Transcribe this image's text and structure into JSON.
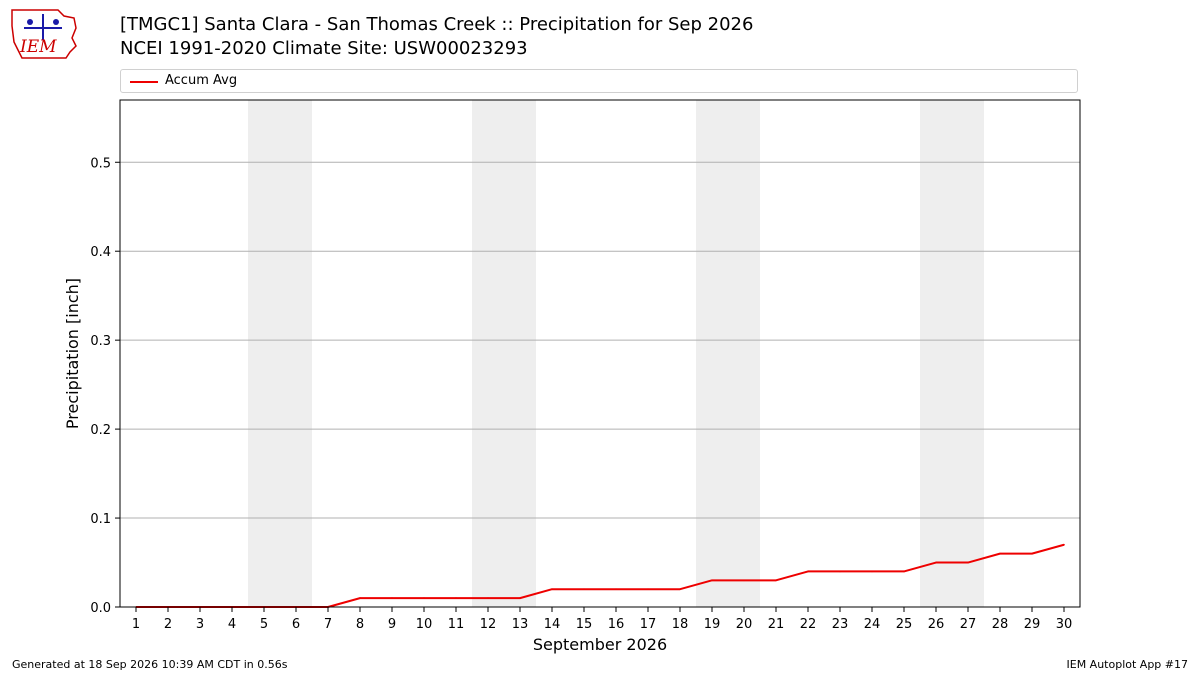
{
  "logo": {
    "text": "IEM",
    "color": "#cc0000",
    "accent": "#1a1aa8"
  },
  "header": {
    "title_line1": "[TMGC1] Santa Clara - San Thomas Creek :: Precipitation for Sep 2026",
    "title_line2": "NCEI 1991-2020 Climate Site: USW00023293"
  },
  "footer": {
    "generated": "Generated at 18 Sep 2026 10:39 AM CDT in 0.56s",
    "app": "IEM Autoplot App #17"
  },
  "chart_data": {
    "type": "line",
    "xlabel": "September 2026",
    "ylabel": "Precipitation [inch]",
    "x": [
      1,
      2,
      3,
      4,
      5,
      6,
      7,
      8,
      9,
      10,
      11,
      12,
      13,
      14,
      15,
      16,
      17,
      18,
      19,
      20,
      21,
      22,
      23,
      24,
      25,
      26,
      27,
      28,
      29,
      30
    ],
    "xlim": [
      0.5,
      30.5
    ],
    "ylim": [
      0,
      0.57
    ],
    "yticks": [
      0.0,
      0.1,
      0.2,
      0.3,
      0.4,
      0.5
    ],
    "ytick_labels": [
      "0.0",
      "0.1",
      "0.2",
      "0.3",
      "0.4",
      "0.5"
    ],
    "grid": "horizontal",
    "legend_position": "top",
    "weekend_bands": [
      [
        4.5,
        6.5
      ],
      [
        11.5,
        13.5
      ],
      [
        18.5,
        20.5
      ],
      [
        25.5,
        27.5
      ]
    ],
    "band_color": "#eeeeee",
    "series": [
      {
        "name": "Accum Avg",
        "color": "#ee0000",
        "values": [
          0,
          0,
          0,
          0,
          0,
          0,
          0,
          0.01,
          0.01,
          0.01,
          0.01,
          0.01,
          0.01,
          0.02,
          0.02,
          0.02,
          0.02,
          0.02,
          0.03,
          0.03,
          0.03,
          0.04,
          0.04,
          0.04,
          0.04,
          0.05,
          0.05,
          0.06,
          0.06,
          0.07
        ]
      }
    ]
  }
}
